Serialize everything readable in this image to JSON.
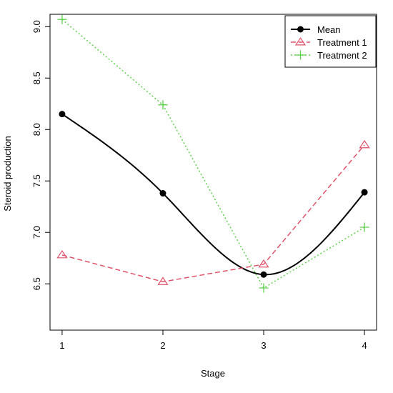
{
  "chart_data": {
    "type": "line",
    "title": "",
    "xlabel": "Stage",
    "ylabel": "Steroid production",
    "x": [
      1,
      2,
      3,
      4
    ],
    "x_ticks": [
      "1",
      "2",
      "3",
      "4"
    ],
    "y_ticks": [
      "6.5",
      "7.0",
      "7.5",
      "8.0",
      "8.5",
      "9.0"
    ],
    "xlim": [
      0.88,
      4.12
    ],
    "ylim": [
      6.05,
      9.12
    ],
    "grid": false,
    "legend_position": "top-right",
    "series": [
      {
        "name": "Mean",
        "values": [
          8.15,
          7.38,
          6.59,
          7.39
        ],
        "color": "#000000",
        "line": "solid",
        "marker": "filled-circle",
        "smooth": true
      },
      {
        "name": "Treatment 1",
        "values": [
          6.78,
          6.52,
          6.69,
          7.85
        ],
        "color": "#DF536B",
        "line": "dashed",
        "marker": "triangle",
        "smooth": false
      },
      {
        "name": "Treatment 2",
        "values": [
          9.07,
          8.24,
          6.46,
          7.05
        ],
        "color": "#61D04F",
        "line": "dotted",
        "marker": "plus",
        "smooth": false
      }
    ]
  }
}
